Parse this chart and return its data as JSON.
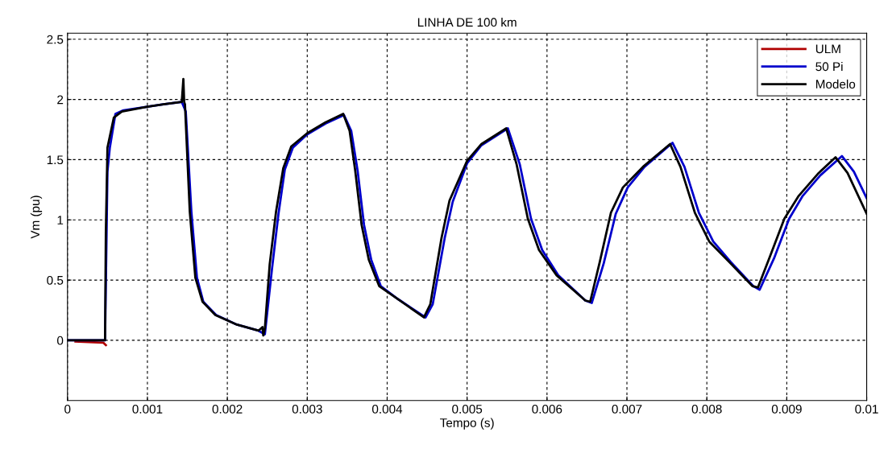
{
  "chart_data": {
    "type": "line",
    "title": "LINHA DE 100 km",
    "xlabel": "Tempo (s)",
    "ylabel": "Vm (pu)",
    "xlim": [
      0,
      0.01
    ],
    "ylim": [
      -0.5,
      2.55
    ],
    "xticks": [
      0,
      0.001,
      0.002,
      0.003,
      0.004,
      0.005,
      0.006,
      0.007,
      0.008,
      0.009,
      0.01
    ],
    "yticks": [
      0,
      0.5,
      1,
      1.5,
      2,
      2.5
    ],
    "grid": true,
    "legend": "top right",
    "line_style": "solid",
    "marker": "none",
    "series": [
      {
        "name": "ULM",
        "color": "#b00000",
        "x": [
          0.0001,
          0.00045,
          0.00048
        ],
        "values": [
          -0.01,
          -0.02,
          -0.04
        ]
      },
      {
        "name": "50 Pi",
        "color": "#0000cc",
        "x": [
          0,
          0.00047,
          0.0005,
          0.00053,
          0.0006,
          0.0007,
          0.001,
          0.0012,
          0.00143,
          0.00148,
          0.00155,
          0.00162,
          0.0017,
          0.00186,
          0.00212,
          0.00239,
          0.00247,
          0.00256,
          0.00264,
          0.00272,
          0.00282,
          0.003,
          0.00323,
          0.00346,
          0.00355,
          0.00363,
          0.00371,
          0.0038,
          0.00392,
          0.00414,
          0.00448,
          0.00457,
          0.00472,
          0.00482,
          0.005,
          0.00518,
          0.00551,
          0.00566,
          0.0058,
          0.00594,
          0.00614,
          0.00648,
          0.00656,
          0.00671,
          0.00686,
          0.00701,
          0.00722,
          0.00757,
          0.00772,
          0.0079,
          0.00808,
          0.0083,
          0.00858,
          0.00866,
          0.00884,
          0.00903,
          0.0092,
          0.00942,
          0.00969,
          0.00984,
          0.01
        ],
        "values": [
          0,
          0,
          1.4,
          1.6,
          1.88,
          1.91,
          1.94,
          1.96,
          1.98,
          1.9,
          1.07,
          0.52,
          0.32,
          0.21,
          0.13,
          0.08,
          0.05,
          0.6,
          1.05,
          1.42,
          1.6,
          1.71,
          1.8,
          1.87,
          1.74,
          1.41,
          0.96,
          0.67,
          0.45,
          0.34,
          0.19,
          0.3,
          0.85,
          1.15,
          1.47,
          1.62,
          1.76,
          1.46,
          1.01,
          0.75,
          0.54,
          0.33,
          0.31,
          0.64,
          1.05,
          1.27,
          1.44,
          1.64,
          1.44,
          1.06,
          0.82,
          0.65,
          0.45,
          0.42,
          0.68,
          1.01,
          1.2,
          1.37,
          1.53,
          1.4,
          1.18
        ]
      },
      {
        "name": "Modelo",
        "color": "#000000",
        "x": [
          0,
          0.00047,
          0.00048,
          0.0005,
          0.00058,
          0.00068,
          0.001,
          0.0012,
          0.00143,
          0.00145,
          0.00146,
          0.00147,
          0.00153,
          0.0016,
          0.00169,
          0.00185,
          0.00212,
          0.00239,
          0.00244,
          0.00245,
          0.00247,
          0.00253,
          0.00261,
          0.0027,
          0.0028,
          0.003,
          0.00323,
          0.00345,
          0.00353,
          0.0036,
          0.00368,
          0.00377,
          0.0039,
          0.00414,
          0.00446,
          0.00454,
          0.00468,
          0.00478,
          0.005,
          0.00518,
          0.00549,
          0.00562,
          0.00576,
          0.0059,
          0.00612,
          0.00648,
          0.00654,
          0.00666,
          0.0068,
          0.00695,
          0.0072,
          0.00754,
          0.00767,
          0.00785,
          0.00803,
          0.00828,
          0.00857,
          0.00864,
          0.00878,
          0.00897,
          0.00915,
          0.0094,
          0.00961,
          0.00976,
          0.01
        ],
        "values": [
          0,
          0,
          0.9,
          1.6,
          1.85,
          1.9,
          1.94,
          1.96,
          1.98,
          2.17,
          1.98,
          1.96,
          1.07,
          0.52,
          0.32,
          0.21,
          0.13,
          0.08,
          0.11,
          0.04,
          0.1,
          0.63,
          1.07,
          1.43,
          1.61,
          1.72,
          1.81,
          1.88,
          1.74,
          1.41,
          0.96,
          0.67,
          0.45,
          0.34,
          0.19,
          0.3,
          0.85,
          1.16,
          1.49,
          1.63,
          1.76,
          1.46,
          1.01,
          0.75,
          0.54,
          0.33,
          0.32,
          0.65,
          1.06,
          1.27,
          1.44,
          1.63,
          1.44,
          1.06,
          0.82,
          0.65,
          0.45,
          0.44,
          0.68,
          1.01,
          1.2,
          1.39,
          1.52,
          1.39,
          1.05
        ]
      }
    ]
  }
}
